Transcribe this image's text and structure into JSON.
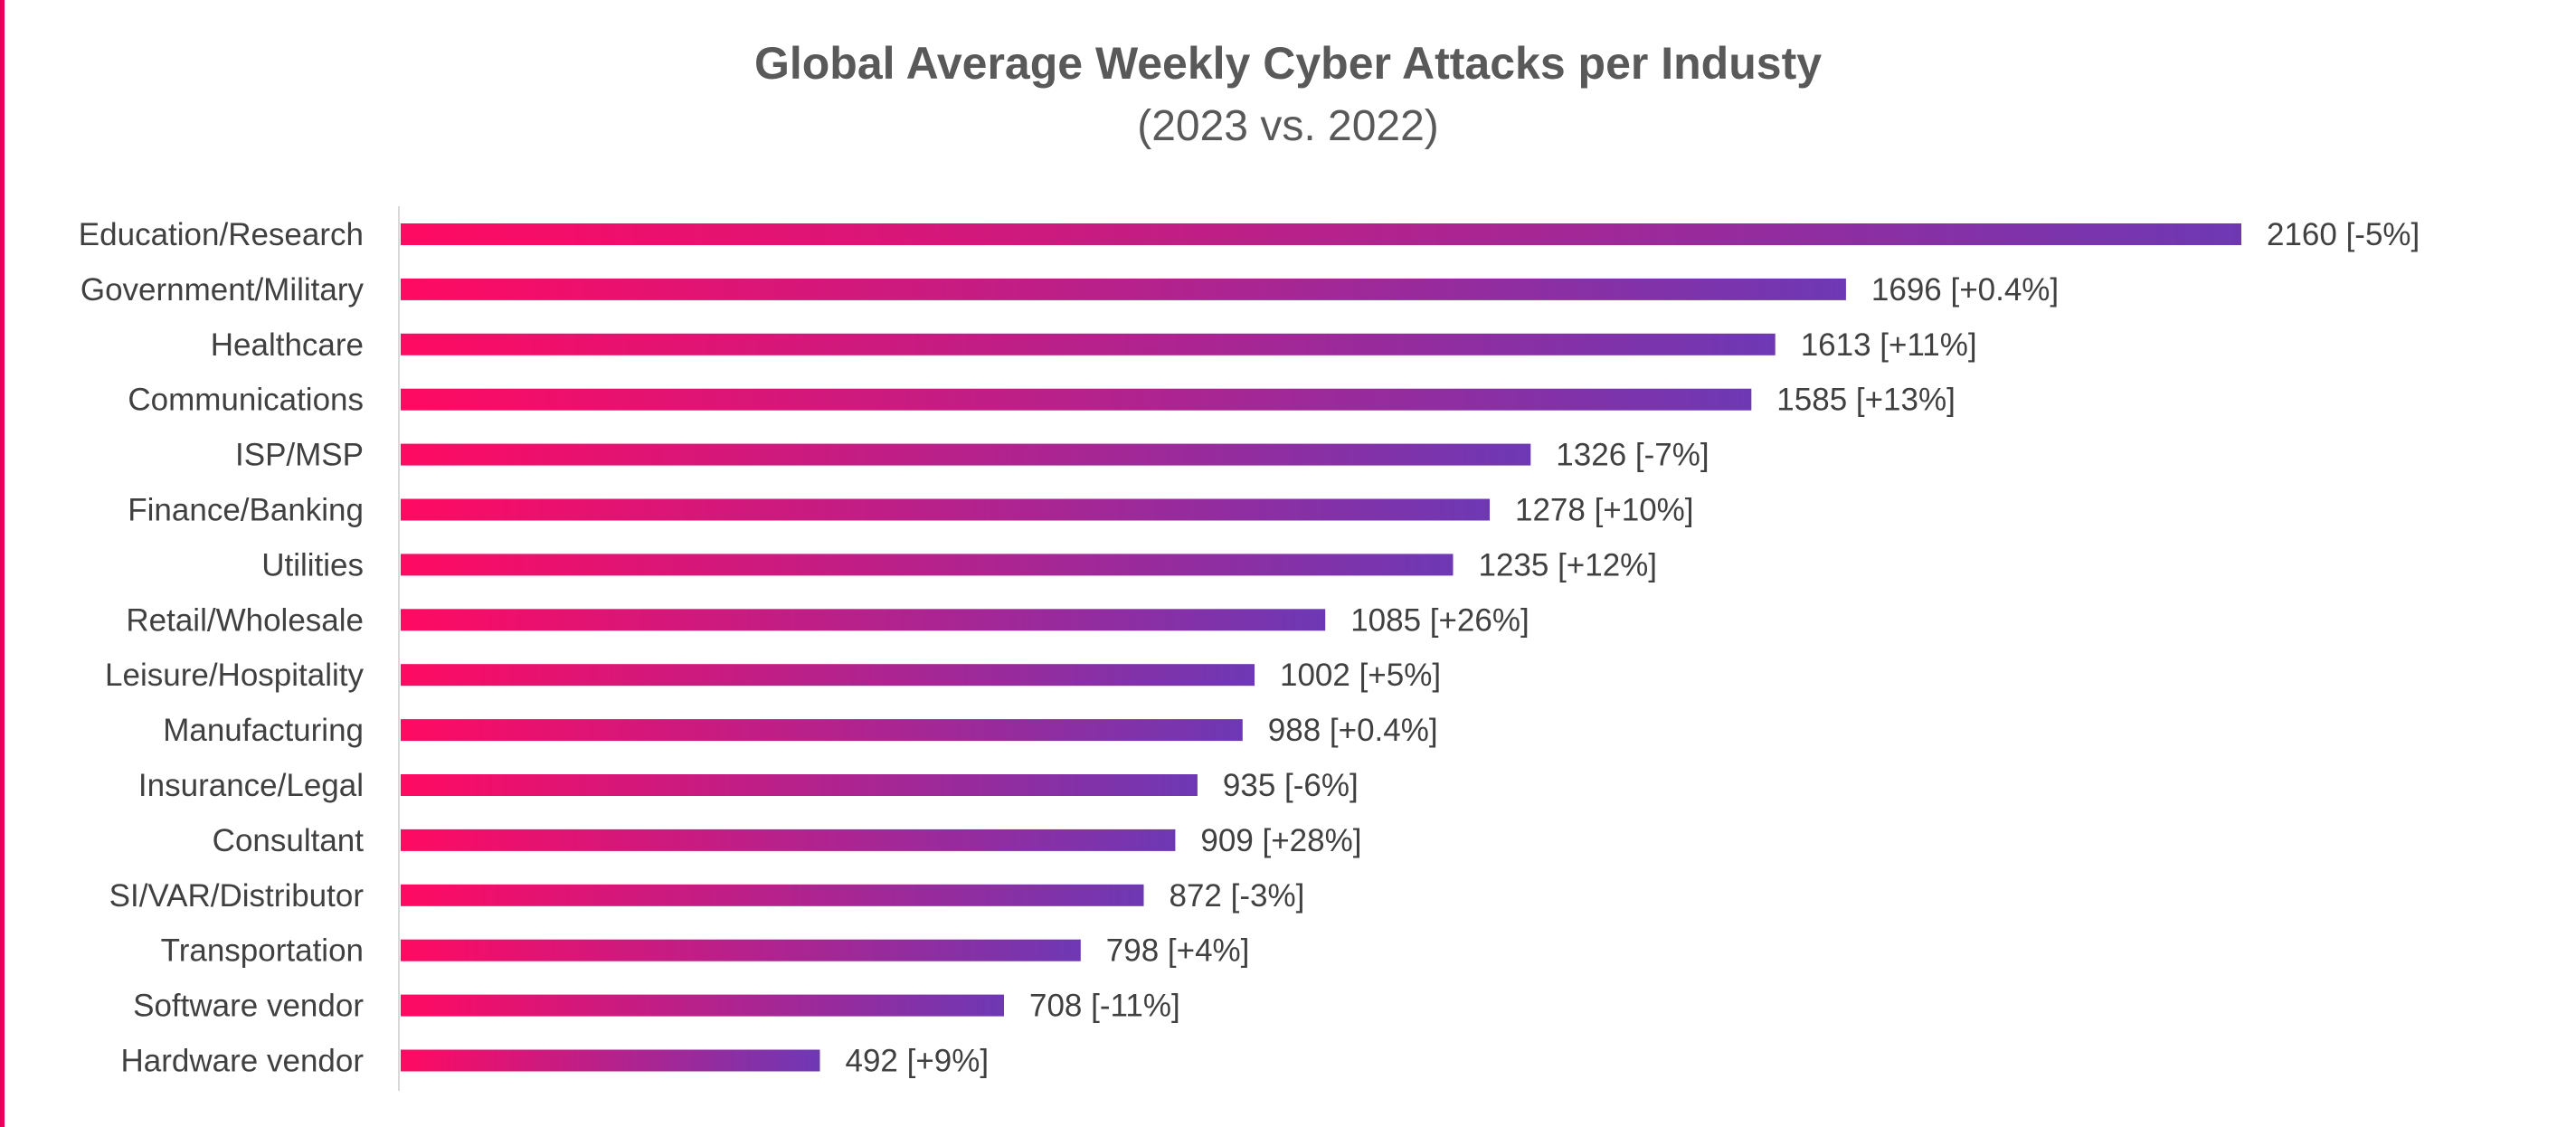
{
  "chart_data": {
    "type": "bar",
    "orientation": "horizontal",
    "title": "Global Average Weekly Cyber Attacks per Industy",
    "subtitle": "(2023 vs. 2022)",
    "xlabel": "",
    "ylabel": "",
    "grid": false,
    "xlim": [
      0,
      2160
    ],
    "categories": [
      "Education/Research",
      "Government/Military",
      "Healthcare",
      "Communications",
      "ISP/MSP",
      "Finance/Banking",
      "Utilities",
      "Retail/Wholesale",
      "Leisure/Hospitality",
      "Manufacturing",
      "Insurance/Legal",
      "Consultant",
      "SI/VAR/Distributor",
      "Transportation",
      "Software vendor",
      "Hardware vendor"
    ],
    "values": [
      2160,
      1696,
      1613,
      1585,
      1326,
      1278,
      1235,
      1085,
      1002,
      988,
      935,
      909,
      872,
      798,
      708,
      492
    ],
    "data_labels": [
      "2160 [-5%]",
      "1696 [+0.4%]",
      "1613 [+11%]",
      "1585 [+13%]",
      "1326 [-7%]",
      "1278 [+10%]",
      "1235 [+12%]",
      "1085 [+26%]",
      "1002 [+5%]",
      "988 [+0.4%]",
      "935 [-6%]",
      "909 [+28%]",
      "872 [-3%]",
      "798 [+4%]",
      "708 [-11%]",
      "492 [+9%]"
    ],
    "colors": {
      "bar_gradient_start": "#ff0a62",
      "bar_gradient_end": "#6e38b4",
      "axis": "#d9d9d9",
      "text": "#404040",
      "title": "#595959",
      "accent": "#e8005c"
    }
  }
}
